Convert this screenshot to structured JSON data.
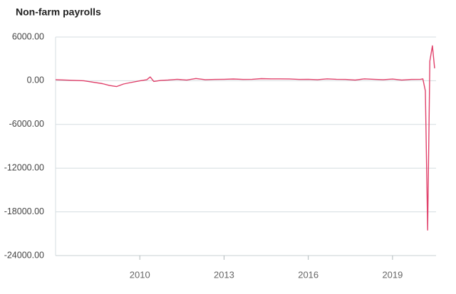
{
  "chart_data": {
    "type": "line",
    "title": "Non-farm payrolls",
    "x": [
      2007.0,
      2007.33,
      2007.67,
      2008.0,
      2008.33,
      2008.67,
      2008.92,
      2009.17,
      2009.42,
      2009.67,
      2010.0,
      2010.25,
      2010.37,
      2010.5,
      2010.75,
      2011.0,
      2011.33,
      2011.67,
      2012.0,
      2012.33,
      2012.67,
      2013.0,
      2013.33,
      2013.67,
      2014.0,
      2014.33,
      2014.67,
      2015.0,
      2015.33,
      2015.67,
      2016.0,
      2016.33,
      2016.67,
      2017.0,
      2017.33,
      2017.67,
      2018.0,
      2018.33,
      2018.67,
      2019.0,
      2019.33,
      2019.67,
      2020.0,
      2020.08,
      2020.17,
      2020.25,
      2020.33,
      2020.42,
      2020.5
    ],
    "values": [
      150,
      100,
      50,
      0,
      -200,
      -400,
      -650,
      -800,
      -450,
      -250,
      -20,
      150,
      520,
      -100,
      50,
      100,
      200,
      100,
      300,
      150,
      180,
      200,
      230,
      180,
      200,
      280,
      250,
      250,
      240,
      180,
      200,
      150,
      250,
      200,
      180,
      100,
      250,
      200,
      150,
      220,
      100,
      180,
      200,
      250,
      -1400,
      -20500,
      2700,
      4800,
      1700
    ],
    "color": "#e0406a",
    "xlim": [
      2007.0,
      2020.55
    ],
    "xticks": [
      2010,
      2013,
      2016,
      2019
    ],
    "ylim": [
      -24000,
      6000
    ],
    "yticks": [
      {
        "value": 6000,
        "label": "6000.00"
      },
      {
        "value": 0,
        "label": "0.00"
      },
      {
        "value": -6000,
        "label": "-6000.00"
      },
      {
        "value": -12000,
        "label": "-12000.00"
      },
      {
        "value": -18000,
        "label": "-18000.00"
      },
      {
        "value": -24000,
        "label": "-24000.00"
      }
    ],
    "grid": true
  }
}
